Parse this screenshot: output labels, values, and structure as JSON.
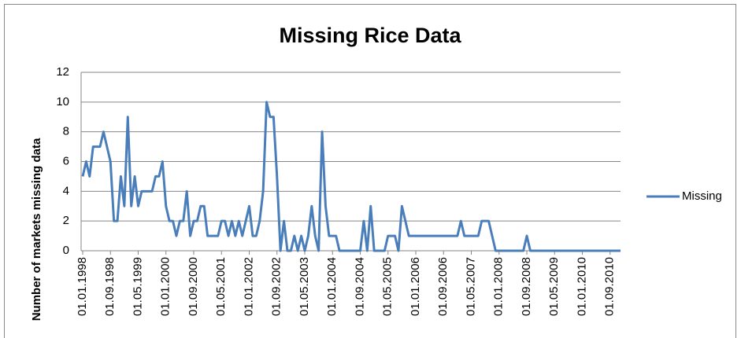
{
  "chart_data": {
    "type": "line",
    "title": "Missing Rice Data",
    "y_label": "Number of markets missing data",
    "categories": [
      "01.01.1998",
      null,
      null,
      null,
      null,
      null,
      null,
      null,
      "01.09.1998",
      null,
      null,
      null,
      null,
      null,
      null,
      null,
      "01.05.1999",
      null,
      null,
      null,
      null,
      null,
      null,
      null,
      "01.01.2000",
      null,
      null,
      null,
      null,
      null,
      null,
      null,
      "01.09.2000",
      null,
      null,
      null,
      null,
      null,
      null,
      null,
      "01.05.2001",
      null,
      null,
      null,
      null,
      null,
      null,
      null,
      "01.01.2002",
      null,
      null,
      null,
      null,
      null,
      null,
      null,
      "01.09.2002",
      null,
      null,
      null,
      null,
      null,
      null,
      null,
      "01.05.2003",
      null,
      null,
      null,
      null,
      null,
      null,
      null,
      "01.01.2004",
      null,
      null,
      null,
      null,
      null,
      null,
      null,
      "01.09.2004",
      null,
      null,
      null,
      null,
      null,
      null,
      null,
      "01.05.2005",
      null,
      null,
      null,
      null,
      null,
      null,
      null,
      "01.01.2006",
      null,
      null,
      null,
      null,
      null,
      null,
      null,
      "01.09.2006",
      null,
      null,
      null,
      null,
      null,
      null,
      null,
      "01.05.2007",
      null,
      null,
      null,
      null,
      null,
      null,
      null,
      "01.01.2008",
      null,
      null,
      null,
      null,
      null,
      null,
      null,
      "01.09.2008",
      null,
      null,
      null,
      null,
      null,
      null,
      null,
      "01.05.2009",
      null,
      null,
      null,
      null,
      null,
      null,
      null,
      "01.01.2010",
      null,
      null,
      null,
      null,
      null,
      null,
      null,
      "01.09.2010",
      null,
      null,
      null
    ],
    "series": [
      {
        "name": "Missing",
        "color": "#4a7ebb",
        "values": [
          5,
          6,
          5,
          7,
          7,
          7,
          8,
          7,
          6,
          2,
          2,
          5,
          3,
          9,
          3,
          5,
          3,
          4,
          4,
          4,
          4,
          5,
          5,
          6,
          3,
          2,
          2,
          1,
          2,
          2,
          4,
          1,
          2,
          2,
          3,
          3,
          1,
          1,
          1,
          1,
          2,
          2,
          1,
          2,
          1,
          2,
          1,
          2,
          3,
          1,
          1,
          2,
          4,
          10,
          9,
          9,
          5,
          0,
          2,
          0,
          0,
          1,
          0,
          1,
          0,
          1,
          3,
          1,
          0,
          8,
          3,
          1,
          1,
          1,
          0,
          0,
          0,
          0,
          0,
          0,
          0,
          2,
          0,
          3,
          0,
          0,
          0,
          0,
          1,
          1,
          1,
          0,
          3,
          2,
          1,
          1,
          1,
          1,
          1,
          1,
          1,
          1,
          1,
          1,
          1,
          1,
          1,
          1,
          1,
          2,
          1,
          1,
          1,
          1,
          1,
          2,
          2,
          2,
          1,
          0,
          0,
          0,
          0,
          0,
          0,
          0,
          0,
          0,
          1,
          0,
          0,
          0,
          0,
          0,
          0,
          0,
          0,
          0,
          0,
          0,
          0,
          0,
          0,
          0,
          0,
          0,
          0,
          0,
          0,
          0,
          0,
          0,
          0,
          0,
          0,
          0
        ]
      }
    ],
    "ylim": [
      0,
      12
    ],
    "yticks": [
      0,
      2,
      4,
      6,
      8,
      10,
      12
    ],
    "grid": true,
    "legend": "right"
  }
}
